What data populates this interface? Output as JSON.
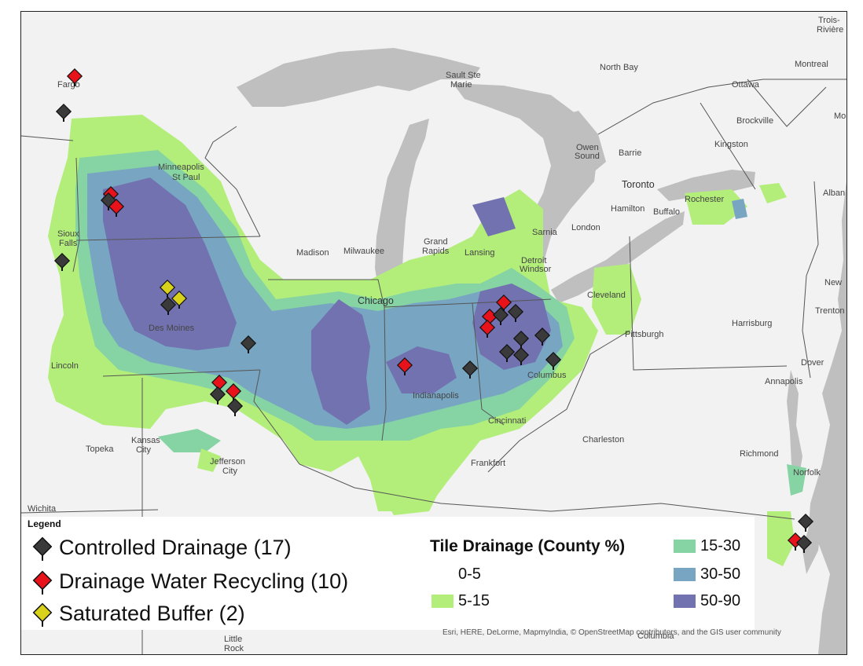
{
  "map": {
    "place_labels": [
      {
        "name": "label-fargo",
        "text": "Fargo"
      },
      {
        "name": "label-minneapolis",
        "text": "Minneapolis"
      },
      {
        "name": "label-st-paul",
        "text": "St Paul"
      },
      {
        "name": "label-sioux-falls-1",
        "text": "Sioux"
      },
      {
        "name": "label-sioux-falls-2",
        "text": "Falls"
      },
      {
        "name": "label-des-moines",
        "text": "Des Moines"
      },
      {
        "name": "label-lincoln",
        "text": "Lincoln"
      },
      {
        "name": "label-topeka",
        "text": "Topeka"
      },
      {
        "name": "label-kansas-1",
        "text": "Kansas"
      },
      {
        "name": "label-kansas-2",
        "text": "City"
      },
      {
        "name": "label-jefferson-1",
        "text": "Jefferson"
      },
      {
        "name": "label-jefferson-2",
        "text": "City"
      },
      {
        "name": "label-wichita",
        "text": "Wichita"
      },
      {
        "name": "label-little-rock-1",
        "text": "Little"
      },
      {
        "name": "label-little-rock-2",
        "text": "Rock"
      },
      {
        "name": "label-madison",
        "text": "Madison"
      },
      {
        "name": "label-milwaukee",
        "text": "Milwaukee"
      },
      {
        "name": "label-chicago",
        "text": "Chicago"
      },
      {
        "name": "label-grand-rapids-1",
        "text": "Grand"
      },
      {
        "name": "label-grand-rapids-2",
        "text": "Rapids"
      },
      {
        "name": "label-lansing",
        "text": "Lansing"
      },
      {
        "name": "label-detroit",
        "text": "Detroit"
      },
      {
        "name": "label-windsor",
        "text": "Windsor"
      },
      {
        "name": "label-sarnia",
        "text": "Sarnia"
      },
      {
        "name": "label-london",
        "text": "London"
      },
      {
        "name": "label-hamilton",
        "text": "Hamilton"
      },
      {
        "name": "label-toronto",
        "text": "Toronto"
      },
      {
        "name": "label-barrie",
        "text": "Barrie"
      },
      {
        "name": "label-owen-sound-1",
        "text": "Owen"
      },
      {
        "name": "label-owen-sound-2",
        "text": "Sound"
      },
      {
        "name": "label-buffalo",
        "text": "Buffalo"
      },
      {
        "name": "label-rochester",
        "text": "Rochester"
      },
      {
        "name": "label-albany",
        "text": "Alban"
      },
      {
        "name": "label-kingston",
        "text": "Kingston"
      },
      {
        "name": "label-brockville",
        "text": "Brockville"
      },
      {
        "name": "label-ottawa",
        "text": "Ottawa"
      },
      {
        "name": "label-montreal",
        "text": "Montreal"
      },
      {
        "name": "label-north-bay",
        "text": "North Bay"
      },
      {
        "name": "label-sault-1",
        "text": "Sault Ste"
      },
      {
        "name": "label-sault-2",
        "text": "Marie"
      },
      {
        "name": "label-trois-1",
        "text": "Trois-"
      },
      {
        "name": "label-trois-2",
        "text": "Rivière"
      },
      {
        "name": "label-mo",
        "text": "Mo"
      },
      {
        "name": "label-indianapolis",
        "text": "Indianapolis"
      },
      {
        "name": "label-cincinnati",
        "text": "Cincinnati"
      },
      {
        "name": "label-columbus",
        "text": "Columbus"
      },
      {
        "name": "label-cleveland",
        "text": "Cleveland"
      },
      {
        "name": "label-pittsburgh",
        "text": "Pittsburgh"
      },
      {
        "name": "label-harrisburg",
        "text": "Harrisburg"
      },
      {
        "name": "label-trenton",
        "text": "Trenton"
      },
      {
        "name": "label-new",
        "text": "New"
      },
      {
        "name": "label-dover",
        "text": "Dover"
      },
      {
        "name": "label-annapolis",
        "text": "Annapolis"
      },
      {
        "name": "label-charleston",
        "text": "Charleston"
      },
      {
        "name": "label-frankfort",
        "text": "Frankfort"
      },
      {
        "name": "label-richmond",
        "text": "Richmond"
      },
      {
        "name": "label-norfolk",
        "text": "Norfolk"
      },
      {
        "name": "label-columbia",
        "text": "Columbia"
      }
    ],
    "site_colors": {
      "controlled_drainage": "#3a3a3a",
      "drainage_water_recycling": "#e8121b",
      "saturated_buffer": "#d9d21a"
    },
    "tile_colors": {
      "c0_5": "#ffffff",
      "c5_15": "#b3ee7a",
      "c15_30": "#86d4a3",
      "c30_50": "#78a6c2",
      "c50_90": "#7272b0"
    },
    "land_color": "#f2f2f2",
    "water_color": "#bfbfbf"
  },
  "legend": {
    "title": "Legend",
    "sites": [
      {
        "label": "Controlled Drainage (17)",
        "icon": "diamond-marker-dark"
      },
      {
        "label": "Drainage Water Recycling (10)",
        "icon": "diamond-marker-red"
      },
      {
        "label": "Saturated Buffer (2)",
        "icon": "diamond-marker-yellow"
      }
    ],
    "tile_title": "Tile Drainage (County %)",
    "tile_classes": [
      {
        "label": "0-5"
      },
      {
        "label": "5-15"
      },
      {
        "label": "15-30"
      },
      {
        "label": "30-50"
      },
      {
        "label": "50-90"
      }
    ]
  },
  "attribution": "Esri, HERE, DeLorme, MapmyIndia, © OpenStreetMap contributors, and the GIS user community"
}
